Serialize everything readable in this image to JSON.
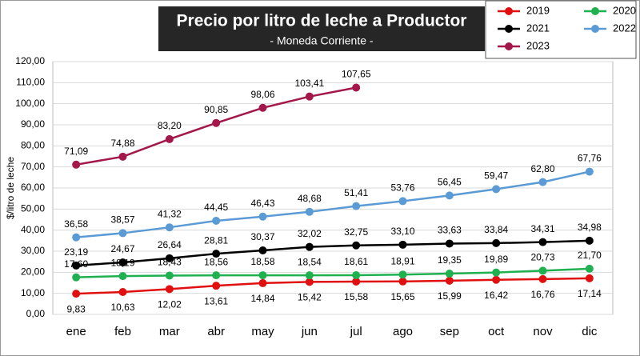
{
  "chart_data": {
    "type": "line",
    "title": "Precio por litro de leche a Productor",
    "subtitle": "- Moneda Corriente -",
    "y_label": "$/litro de leche",
    "categories": [
      "ene",
      "feb",
      "mar",
      "abr",
      "may",
      "jun",
      "jul",
      "ago",
      "sep",
      "oct",
      "nov",
      "dic"
    ],
    "series": [
      {
        "name": "2019",
        "color": "#e01010",
        "values": [
          9.83,
          10.63,
          12.02,
          13.61,
          14.84,
          15.42,
          15.58,
          15.65,
          15.99,
          16.42,
          16.76,
          17.14
        ],
        "value_labels": [
          "9,83",
          "10,63",
          "12,02",
          "13,61",
          "14,84",
          "15,42",
          "15,58",
          "15,65",
          "15,99",
          "16,42",
          "16,76",
          "17,14"
        ]
      },
      {
        "name": "2020",
        "color": "#1fb050",
        "values": [
          17.6,
          18.19,
          18.43,
          18.56,
          18.58,
          18.54,
          18.61,
          18.91,
          19.35,
          19.89,
          20.73,
          21.7
        ],
        "value_labels": [
          "17,60",
          "18,19",
          "18,43",
          "18,56",
          "18,58",
          "18,54",
          "18,61",
          "18,91",
          "19,35",
          "19,89",
          "20,73",
          "21,70"
        ]
      },
      {
        "name": "2021",
        "color": "#000000",
        "values": [
          23.19,
          24.67,
          26.64,
          28.81,
          30.37,
          32.02,
          32.75,
          33.1,
          33.63,
          33.84,
          34.31,
          34.98
        ],
        "value_labels": [
          "23,19",
          "24,67",
          "26,64",
          "28,81",
          "30,37",
          "32,02",
          "32,75",
          "33,10",
          "33,63",
          "33,84",
          "34,31",
          "34,98"
        ]
      },
      {
        "name": "2022",
        "color": "#5b9bd5",
        "values": [
          36.58,
          38.57,
          41.32,
          44.45,
          46.43,
          48.68,
          51.41,
          53.76,
          56.45,
          59.47,
          62.8,
          67.76
        ],
        "value_labels": [
          "36,58",
          "38,57",
          "41,32",
          "44,45",
          "46,43",
          "48,68",
          "51,41",
          "53,76",
          "56,45",
          "59,47",
          "62,80",
          "67,76"
        ]
      },
      {
        "name": "2023",
        "color": "#a3174a",
        "values": [
          71.09,
          74.88,
          83.2,
          90.85,
          98.06,
          103.41,
          107.65,
          null,
          null,
          null,
          null,
          null
        ],
        "value_labels": [
          "71,09",
          "74,88",
          "83,20",
          "90,85",
          "98,06",
          "103,41",
          "107,65",
          null,
          null,
          null,
          null,
          null
        ]
      }
    ],
    "ylim": [
      0,
      120
    ],
    "yticks": [
      {
        "value": 0,
        "label": "0,00"
      },
      {
        "value": 10,
        "label": "10,00"
      },
      {
        "value": 20,
        "label": "20,00"
      },
      {
        "value": 30,
        "label": "30,00"
      },
      {
        "value": 40,
        "label": "40,00"
      },
      {
        "value": 50,
        "label": "50,00"
      },
      {
        "value": 60,
        "label": "60,00"
      },
      {
        "value": 70,
        "label": "70,00"
      },
      {
        "value": 80,
        "label": "80,00"
      },
      {
        "value": 90,
        "label": "90,00"
      },
      {
        "value": 100,
        "label": "100,00"
      },
      {
        "value": 110,
        "label": "110,00"
      },
      {
        "value": 120,
        "label": "120,00"
      }
    ],
    "grid": true,
    "legend_position": "top-right"
  }
}
